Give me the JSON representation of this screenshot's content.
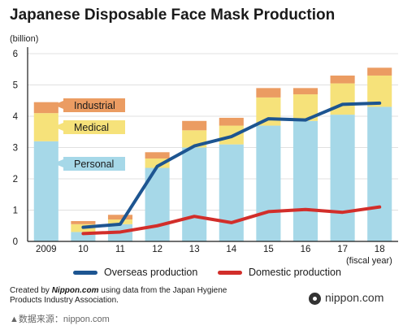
{
  "title": "Japanese Disposable Face Mask Production",
  "unit_label": "(billion)",
  "x_axis_suffix": "(fiscal year)",
  "legend": {
    "overseas": "Overseas production",
    "domestic": "Domestic production"
  },
  "credit": {
    "prefix": "Created by ",
    "site": "Nippon.com",
    "rest": " using data from the Japan Hygiene Products Industry Association."
  },
  "brand": "nippon.com",
  "source": "▲数据来源：nippon.com",
  "colors": {
    "personal": "#a6d8e8",
    "medical": "#f6e27a",
    "industrial": "#eb9c62",
    "overseas": "#1d5591",
    "domestic": "#d22e2a",
    "axis": "#1a1a1a"
  },
  "chart_data": {
    "type": "bar",
    "stacked": true,
    "categories": [
      "2009",
      "10",
      "11",
      "12",
      "13",
      "14",
      "15",
      "16",
      "17",
      "18"
    ],
    "ylim": [
      0,
      6
    ],
    "yticks": [
      0,
      1,
      2,
      3,
      4,
      5,
      6
    ],
    "series": [
      {
        "name": "Personal",
        "color": "#a6d8e8",
        "values": [
          3.2,
          0.3,
          0.55,
          2.35,
          3.0,
          3.1,
          3.7,
          3.85,
          4.05,
          4.3
        ]
      },
      {
        "name": "Medical",
        "color": "#f6e27a",
        "values": [
          0.9,
          0.25,
          0.15,
          0.3,
          0.55,
          0.6,
          0.9,
          0.85,
          1.0,
          1.0
        ]
      },
      {
        "name": "Industrial",
        "color": "#eb9c62",
        "values": [
          0.35,
          0.1,
          0.15,
          0.2,
          0.3,
          0.25,
          0.3,
          0.2,
          0.25,
          0.25
        ]
      }
    ],
    "lines": [
      {
        "name": "Overseas production",
        "color": "#1d5591",
        "values": [
          null,
          0.45,
          0.55,
          2.4,
          3.05,
          3.35,
          3.92,
          3.88,
          4.38,
          4.42
        ]
      },
      {
        "name": "Domestic production",
        "color": "#d22e2a",
        "values": [
          null,
          0.25,
          0.3,
          0.5,
          0.8,
          0.6,
          0.95,
          1.02,
          0.93,
          1.1
        ]
      }
    ]
  }
}
